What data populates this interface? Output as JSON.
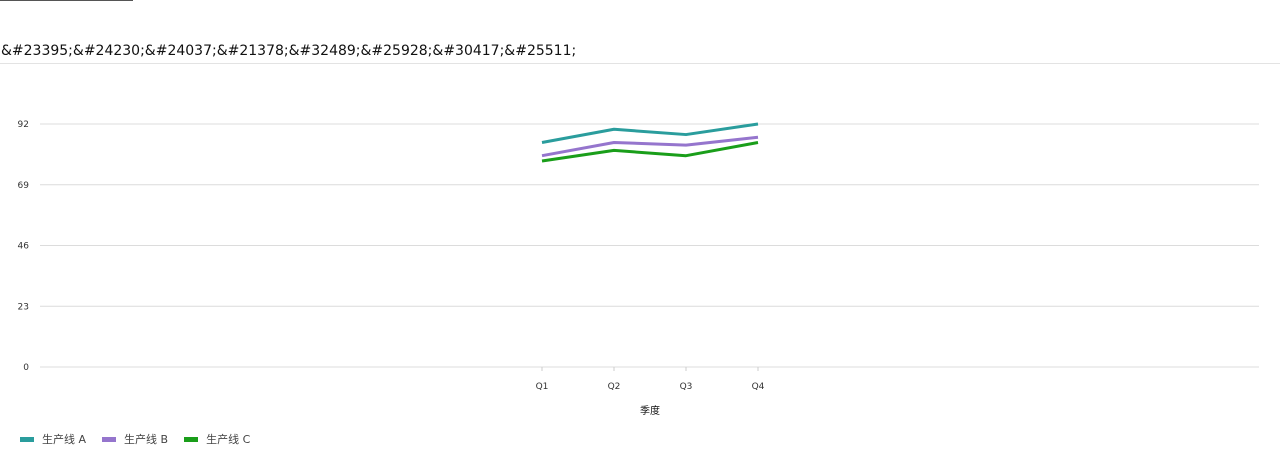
{
  "page": {
    "title": "&#23395;&#24230;&#24037;&#21378;&#32489;&#25928;&#30417;&#25511;"
  },
  "chart_data": {
    "type": "line",
    "title": "",
    "xlabel": "季度",
    "ylabel": "",
    "categories": [
      "Q1",
      "Q2",
      "Q3",
      "Q4"
    ],
    "ylim": [
      0,
      92
    ],
    "yticks": [
      0,
      23,
      46,
      69,
      92
    ],
    "grid": true,
    "legend_position": "bottom-left",
    "series": [
      {
        "name": "生产线 A",
        "color": "#2a9d9d",
        "values": [
          85,
          90,
          88,
          92
        ]
      },
      {
        "name": "生产线 B",
        "color": "#9575cd",
        "values": [
          80,
          85,
          84,
          87
        ]
      },
      {
        "name": "生产线 C",
        "color": "#1a9e1a",
        "values": [
          78,
          82,
          80,
          85
        ]
      }
    ]
  }
}
